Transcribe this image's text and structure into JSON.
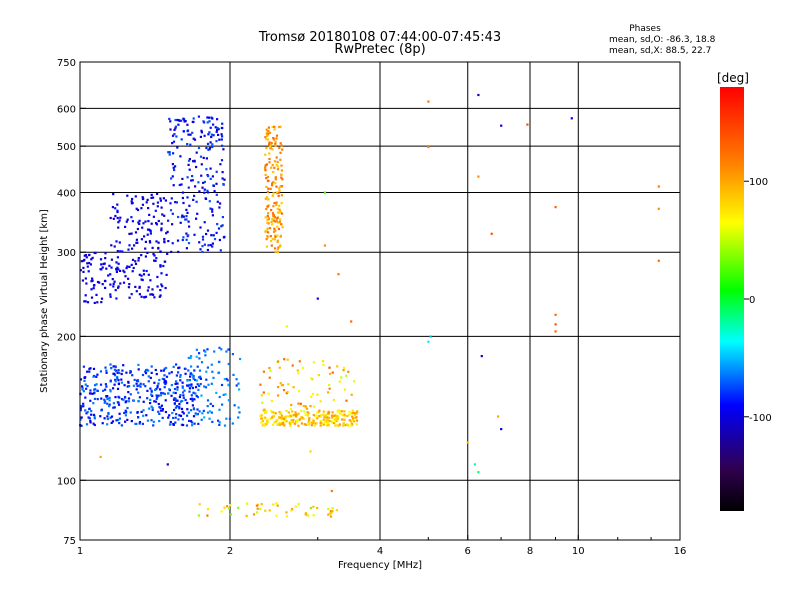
{
  "chart_data": {
    "type": "scatter",
    "title": "Tromsø 20180108 07:44:00-07:45:43",
    "subtitle": "RwPretec (8p)",
    "xlabel": "Frequency [MHz]",
    "ylabel": "Stationary phase Virtual Height [km]",
    "x_scale": "log",
    "y_scale": "log",
    "xlim": [
      1,
      16
    ],
    "ylim": [
      75,
      750
    ],
    "x_ticks": [
      1,
      2,
      4,
      6,
      8,
      10,
      16
    ],
    "x_tick_labels": [
      "1",
      "2",
      "4",
      "6",
      "8",
      "10",
      "16"
    ],
    "y_ticks": [
      75,
      100,
      200,
      300,
      400,
      500,
      600,
      750
    ],
    "y_tick_labels": [
      "75",
      "100",
      "200",
      "300",
      "400",
      "500",
      "600",
      "750"
    ],
    "grid": true,
    "stats": {
      "header": "Phases",
      "line1": "mean, sd,O: -86.3, 18.8",
      "line2": "mean, sd,X:  88.5, 22.7"
    },
    "colorbar": {
      "label": "[deg]",
      "range": [
        -180,
        180
      ],
      "ticks": [
        100,
        0,
        -100
      ],
      "tick_labels": [
        "100",
        "0",
        "-100"
      ]
    },
    "clusters": [
      {
        "x": [
          1.0,
          1.75
        ],
        "y": [
          130,
          175
        ],
        "n": 420,
        "phase": [
          -100,
          -60
        ]
      },
      {
        "x": [
          1.0,
          1.15
        ],
        "y": [
          235,
          300
        ],
        "n": 60,
        "phase": [
          -110,
          -90
        ]
      },
      {
        "x": [
          1.15,
          1.5
        ],
        "y": [
          240,
          400
        ],
        "n": 200,
        "phase": [
          -110,
          -85
        ]
      },
      {
        "x": [
          1.5,
          1.95
        ],
        "y": [
          300,
          580
        ],
        "n": 230,
        "phase": [
          -110,
          -70
        ]
      },
      {
        "x": [
          1.6,
          2.1
        ],
        "y": [
          130,
          190
        ],
        "n": 90,
        "phase": [
          -80,
          -50
        ]
      },
      {
        "x": [
          2.35,
          2.55
        ],
        "y": [
          300,
          550
        ],
        "n": 180,
        "phase": [
          80,
          130
        ]
      },
      {
        "x": [
          2.3,
          3.6
        ],
        "y": [
          130,
          140
        ],
        "n": 240,
        "phase": [
          60,
          110
        ]
      },
      {
        "x": [
          2.3,
          3.6
        ],
        "y": [
          140,
          180
        ],
        "n": 70,
        "phase": [
          50,
          140
        ]
      },
      {
        "x": [
          1.7,
          3.3
        ],
        "y": [
          84,
          90
        ],
        "n": 50,
        "phase": [
          30,
          120
        ]
      }
    ],
    "scattered_points": [
      {
        "x": 5.0,
        "y": 620,
        "phase": 120
      },
      {
        "x": 5.0,
        "y": 498,
        "phase": 115
      },
      {
        "x": 6.3,
        "y": 640,
        "phase": -110
      },
      {
        "x": 7.0,
        "y": 552,
        "phase": -100
      },
      {
        "x": 7.9,
        "y": 555,
        "phase": 140
      },
      {
        "x": 9.7,
        "y": 572,
        "phase": -100
      },
      {
        "x": 6.3,
        "y": 432,
        "phase": 110
      },
      {
        "x": 6.7,
        "y": 328,
        "phase": 140
      },
      {
        "x": 9.0,
        "y": 373,
        "phase": 130
      },
      {
        "x": 14.5,
        "y": 412,
        "phase": 120
      },
      {
        "x": 14.5,
        "y": 370,
        "phase": 110
      },
      {
        "x": 14.5,
        "y": 288,
        "phase": 125
      },
      {
        "x": 9.0,
        "y": 222,
        "phase": 130
      },
      {
        "x": 9.0,
        "y": 212,
        "phase": 140
      },
      {
        "x": 9.0,
        "y": 205,
        "phase": 130
      },
      {
        "x": 6.4,
        "y": 182,
        "phase": -110
      },
      {
        "x": 5.05,
        "y": 200,
        "phase": -50
      },
      {
        "x": 5.0,
        "y": 195,
        "phase": -40
      },
      {
        "x": 7.0,
        "y": 128,
        "phase": -100
      },
      {
        "x": 6.9,
        "y": 136,
        "phase": 100
      },
      {
        "x": 6.0,
        "y": 120,
        "phase": 90
      },
      {
        "x": 6.2,
        "y": 108,
        "phase": -20
      },
      {
        "x": 6.3,
        "y": 104,
        "phase": -10
      },
      {
        "x": 3.0,
        "y": 240,
        "phase": -100
      },
      {
        "x": 3.1,
        "y": 310,
        "phase": 110
      },
      {
        "x": 3.3,
        "y": 270,
        "phase": 120
      },
      {
        "x": 3.5,
        "y": 215,
        "phase": 130
      },
      {
        "x": 2.6,
        "y": 210,
        "phase": 60
      },
      {
        "x": 3.1,
        "y": 400,
        "phase": 20
      },
      {
        "x": 1.5,
        "y": 108,
        "phase": -110
      },
      {
        "x": 1.1,
        "y": 112,
        "phase": 100
      },
      {
        "x": 2.9,
        "y": 115,
        "phase": 80
      },
      {
        "x": 3.2,
        "y": 95,
        "phase": 120
      }
    ]
  }
}
